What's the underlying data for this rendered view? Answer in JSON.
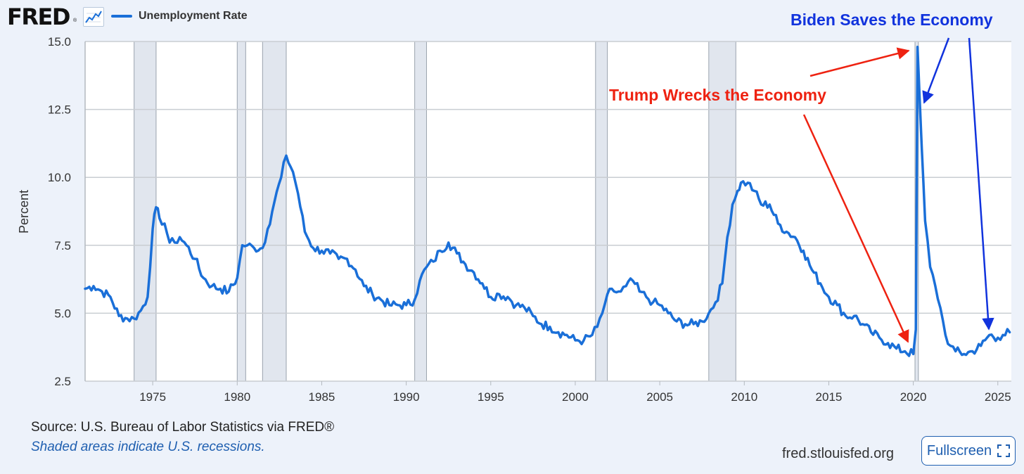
{
  "header": {
    "logo_text": "FRED",
    "logo_reg": "®",
    "legend_label": "Unemployment Rate",
    "series_color": "#1a6fd8"
  },
  "footer": {
    "source": "Source: U.S. Bureau of Labor Statistics via FRED®",
    "recession_note": "Shaded areas indicate U.S. recessions.",
    "site": "fred.stlouisfed.org",
    "fullscreen_label": "Fullscreen"
  },
  "annotations": {
    "trump_text": "Trump Wrecks the Economy",
    "trump_color": "#ee2211",
    "biden_text": "Biden Saves the Economy",
    "biden_color": "#1133dd"
  },
  "chart_data": {
    "type": "line",
    "title": "Unemployment Rate",
    "xlabel": "",
    "ylabel": "Percent",
    "xlim": [
      1971.0,
      2025.8
    ],
    "ylim": [
      2.5,
      15.0
    ],
    "y_ticks": [
      "2.5",
      "5.0",
      "7.5",
      "10.0",
      "12.5",
      "15.0"
    ],
    "y_tick_values": [
      2.5,
      5.0,
      7.5,
      10.0,
      12.5,
      15.0
    ],
    "x_ticks": [
      "1975",
      "1980",
      "1985",
      "1990",
      "1995",
      "2000",
      "2005",
      "2010",
      "2015",
      "2020",
      "2025"
    ],
    "x_tick_values": [
      1975,
      1980,
      1985,
      1990,
      1995,
      2000,
      2005,
      2010,
      2015,
      2020,
      2025
    ],
    "grid": true,
    "recessions": [
      [
        1973.9,
        1975.2
      ],
      [
        1980.0,
        1980.5
      ],
      [
        1981.5,
        1982.9
      ],
      [
        1990.5,
        1991.2
      ],
      [
        2001.2,
        2001.9
      ],
      [
        2007.9,
        2009.5
      ],
      [
        2020.1,
        2020.3
      ]
    ],
    "series": [
      {
        "name": "Unemployment Rate",
        "x": [
          1971.0,
          1971.5,
          1972.0,
          1972.5,
          1973.0,
          1973.5,
          1973.9,
          1974.3,
          1974.7,
          1975.0,
          1975.2,
          1975.4,
          1975.7,
          1976.0,
          1976.3,
          1976.6,
          1977.0,
          1977.5,
          1978.0,
          1978.5,
          1979.0,
          1979.5,
          1980.0,
          1980.3,
          1980.6,
          1981.0,
          1981.5,
          1981.8,
          1982.2,
          1982.6,
          1982.9,
          1983.3,
          1983.6,
          1984.0,
          1984.5,
          1985.0,
          1985.5,
          1986.0,
          1986.5,
          1987.0,
          1987.5,
          1988.0,
          1988.5,
          1989.0,
          1989.5,
          1990.0,
          1990.5,
          1990.8,
          1991.2,
          1991.6,
          1992.0,
          1992.5,
          1993.0,
          1993.5,
          1994.0,
          1994.5,
          1995.0,
          1995.5,
          1996.0,
          1996.5,
          1997.0,
          1997.5,
          1998.0,
          1998.5,
          1999.0,
          1999.5,
          2000.0,
          2000.5,
          2001.0,
          2001.3,
          2001.6,
          2001.9,
          2002.3,
          2002.7,
          2003.0,
          2003.4,
          2003.8,
          2004.2,
          2004.6,
          2005.0,
          2005.5,
          2006.0,
          2006.5,
          2007.0,
          2007.5,
          2007.9,
          2008.3,
          2008.7,
          2009.0,
          2009.3,
          2009.6,
          2009.8,
          2010.2,
          2010.6,
          2011.0,
          2011.5,
          2012.0,
          2012.5,
          2013.0,
          2013.5,
          2014.0,
          2014.5,
          2015.0,
          2015.5,
          2016.0,
          2016.5,
          2017.0,
          2017.5,
          2018.0,
          2018.5,
          2019.0,
          2019.5,
          2020.0,
          2020.15,
          2020.25,
          2020.35,
          2020.5,
          2020.7,
          2021.0,
          2021.3,
          2021.6,
          2021.9,
          2022.2,
          2022.5,
          2023.0,
          2023.5,
          2024.0,
          2024.5,
          2025.0,
          2025.3,
          2025.7
        ],
        "values": [
          5.9,
          6.0,
          5.8,
          5.6,
          4.9,
          4.8,
          4.8,
          5.1,
          5.6,
          8.1,
          8.9,
          8.5,
          8.3,
          7.6,
          7.6,
          7.8,
          7.5,
          7.0,
          6.3,
          6.0,
          5.9,
          5.8,
          6.3,
          7.5,
          7.5,
          7.4,
          7.4,
          8.1,
          9.1,
          10.0,
          10.8,
          10.2,
          9.4,
          8.0,
          7.4,
          7.3,
          7.2,
          7.0,
          7.0,
          6.6,
          6.0,
          5.7,
          5.5,
          5.3,
          5.3,
          5.3,
          5.5,
          6.2,
          6.7,
          6.9,
          7.3,
          7.6,
          7.2,
          6.8,
          6.5,
          6.1,
          5.6,
          5.7,
          5.6,
          5.3,
          5.2,
          4.9,
          4.6,
          4.5,
          4.3,
          4.2,
          4.0,
          4.0,
          4.2,
          4.5,
          5.0,
          5.7,
          5.8,
          5.8,
          6.0,
          6.2,
          5.8,
          5.6,
          5.4,
          5.3,
          5.0,
          4.7,
          4.6,
          4.6,
          4.7,
          5.0,
          5.4,
          6.1,
          7.8,
          9.0,
          9.5,
          9.8,
          9.8,
          9.5,
          9.0,
          9.0,
          8.3,
          8.0,
          7.8,
          7.3,
          6.6,
          6.1,
          5.6,
          5.3,
          4.9,
          4.9,
          4.6,
          4.3,
          4.1,
          3.9,
          3.7,
          3.6,
          3.5,
          4.4,
          14.8,
          13.3,
          11.1,
          8.4,
          6.7,
          6.0,
          5.2,
          4.2,
          3.8,
          3.6,
          3.5,
          3.6,
          3.8,
          4.2,
          4.1,
          4.2,
          4.3
        ]
      }
    ]
  }
}
